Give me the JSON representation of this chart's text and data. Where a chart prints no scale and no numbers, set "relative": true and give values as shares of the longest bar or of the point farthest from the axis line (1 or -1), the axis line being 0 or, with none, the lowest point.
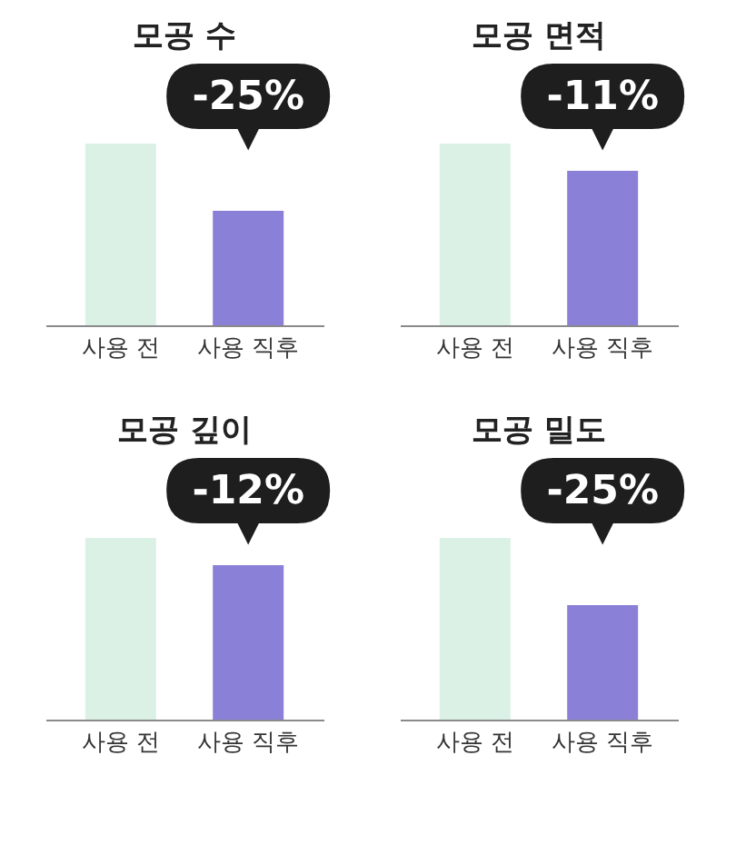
{
  "chart_data": [
    {
      "type": "bar",
      "relative": true,
      "title": "모공 수",
      "categories": [
        "사용 전",
        "사용 직후"
      ],
      "values": [
        1,
        0.63
      ],
      "colors": [
        "#dcf1e6",
        "#8b80d8"
      ],
      "annotations": [
        "-25%"
      ]
    },
    {
      "type": "bar",
      "relative": true,
      "title": "모공 면적",
      "categories": [
        "사용 전",
        "사용 직후"
      ],
      "values": [
        1,
        0.85
      ],
      "colors": [
        "#dcf1e6",
        "#8b80d8"
      ],
      "annotations": [
        "-11%"
      ]
    },
    {
      "type": "bar",
      "relative": true,
      "title": "모공 깊이",
      "categories": [
        "사용 전",
        "사용 직후"
      ],
      "values": [
        1,
        0.85
      ],
      "colors": [
        "#dcf1e6",
        "#8b80d8"
      ],
      "annotations": [
        "-12%"
      ]
    },
    {
      "type": "bar",
      "relative": true,
      "title": "모공 밀도",
      "categories": [
        "사용 전",
        "사용 직후"
      ],
      "values": [
        1,
        0.63
      ],
      "colors": [
        "#dcf1e6",
        "#8b80d8"
      ],
      "annotations": [
        "-25%"
      ]
    }
  ]
}
